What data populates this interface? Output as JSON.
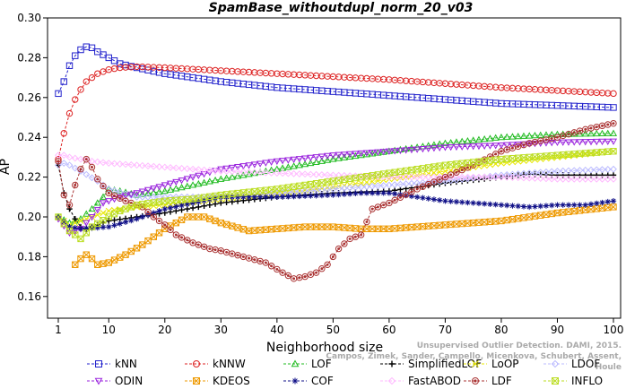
{
  "chart_data": {
    "type": "line",
    "title": "SpamBase_withoutdupl_norm_20_v03",
    "xlabel": "Neighborhood size",
    "ylabel": "AP",
    "xlim": [
      1,
      100
    ],
    "ylim": [
      0.15,
      0.3
    ],
    "xticks": [
      1,
      10,
      20,
      30,
      40,
      50,
      60,
      70,
      80,
      90,
      100
    ],
    "yticks": [
      0.16,
      0.18,
      0.2,
      0.22,
      0.24,
      0.26,
      0.28,
      0.3
    ],
    "grid": false,
    "legend_position": "bottom",
    "series": [
      {
        "name": "kNN",
        "color": "#2222cc",
        "marker": "square",
        "points": [
          [
            1,
            0.262
          ],
          [
            2,
            0.268
          ],
          [
            3,
            0.276
          ],
          [
            4,
            0.281
          ],
          [
            5,
            0.284
          ],
          [
            6,
            0.2855
          ],
          [
            7,
            0.285
          ],
          [
            8,
            0.283
          ],
          [
            10,
            0.28
          ],
          [
            12,
            0.277
          ],
          [
            15,
            0.275
          ],
          [
            20,
            0.272
          ],
          [
            25,
            0.27
          ],
          [
            30,
            0.268
          ],
          [
            40,
            0.265
          ],
          [
            50,
            0.263
          ],
          [
            60,
            0.261
          ],
          [
            70,
            0.259
          ],
          [
            80,
            0.257
          ],
          [
            90,
            0.256
          ],
          [
            100,
            0.255
          ]
        ]
      },
      {
        "name": "kNNW",
        "color": "#dd2222",
        "marker": "circle",
        "points": [
          [
            1,
            0.229
          ],
          [
            2,
            0.242
          ],
          [
            3,
            0.252
          ],
          [
            4,
            0.259
          ],
          [
            5,
            0.264
          ],
          [
            6,
            0.268
          ],
          [
            8,
            0.272
          ],
          [
            10,
            0.274
          ],
          [
            12,
            0.275
          ],
          [
            15,
            0.2755
          ],
          [
            20,
            0.275
          ],
          [
            30,
            0.2735
          ],
          [
            40,
            0.272
          ],
          [
            50,
            0.2705
          ],
          [
            60,
            0.269
          ],
          [
            70,
            0.267
          ],
          [
            80,
            0.265
          ],
          [
            90,
            0.2635
          ],
          [
            100,
            0.262
          ]
        ]
      },
      {
        "name": "LOF",
        "color": "#22bb22",
        "marker": "triangle-up",
        "points": [
          [
            1,
            0.2
          ],
          [
            3,
            0.197
          ],
          [
            5,
            0.199
          ],
          [
            7,
            0.204
          ],
          [
            9,
            0.21
          ],
          [
            10,
            0.214
          ],
          [
            12,
            0.213
          ],
          [
            15,
            0.211
          ],
          [
            20,
            0.213
          ],
          [
            25,
            0.216
          ],
          [
            30,
            0.219
          ],
          [
            40,
            0.224
          ],
          [
            50,
            0.229
          ],
          [
            60,
            0.233
          ],
          [
            70,
            0.237
          ],
          [
            80,
            0.24
          ],
          [
            90,
            0.2415
          ],
          [
            100,
            0.242
          ]
        ]
      },
      {
        "name": "SimplifiedLOF",
        "color": "#000000",
        "marker": "plus",
        "points": [
          [
            1,
            0.226
          ],
          [
            2,
            0.212
          ],
          [
            3,
            0.204
          ],
          [
            4,
            0.199
          ],
          [
            5,
            0.195
          ],
          [
            6,
            0.194
          ],
          [
            8,
            0.196
          ],
          [
            10,
            0.198
          ],
          [
            15,
            0.2
          ],
          [
            20,
            0.202
          ],
          [
            30,
            0.207
          ],
          [
            40,
            0.21
          ],
          [
            50,
            0.212
          ],
          [
            60,
            0.213
          ],
          [
            70,
            0.217
          ],
          [
            80,
            0.22
          ],
          [
            85,
            0.2215
          ],
          [
            90,
            0.221
          ],
          [
            100,
            0.221
          ]
        ]
      },
      {
        "name": "LoOP",
        "color": "#e8e800",
        "marker": "x",
        "points": [
          [
            1,
            0.2
          ],
          [
            3,
            0.196
          ],
          [
            5,
            0.198
          ],
          [
            8,
            0.201
          ],
          [
            10,
            0.203
          ],
          [
            15,
            0.205
          ],
          [
            20,
            0.206
          ],
          [
            30,
            0.209
          ],
          [
            40,
            0.212
          ],
          [
            50,
            0.215
          ],
          [
            60,
            0.219
          ],
          [
            70,
            0.223
          ],
          [
            80,
            0.227
          ],
          [
            90,
            0.23
          ],
          [
            100,
            0.233
          ]
        ]
      },
      {
        "name": "LDOF",
        "color": "#bbbbff",
        "marker": "diamond",
        "points": [
          [
            1,
            0.226
          ],
          [
            2,
            0.227
          ],
          [
            3,
            0.226
          ],
          [
            5,
            0.223
          ],
          [
            8,
            0.218
          ],
          [
            10,
            0.214
          ],
          [
            15,
            0.21
          ],
          [
            20,
            0.21
          ],
          [
            30,
            0.21
          ],
          [
            40,
            0.212
          ],
          [
            50,
            0.214
          ],
          [
            60,
            0.216
          ],
          [
            70,
            0.218
          ],
          [
            80,
            0.221
          ],
          [
            90,
            0.223
          ],
          [
            100,
            0.224
          ]
        ]
      },
      {
        "name": "ODIN",
        "color": "#9922dd",
        "marker": "triangle-down",
        "points": [
          [
            1,
            0.199
          ],
          [
            3,
            0.192
          ],
          [
            5,
            0.194
          ],
          [
            7,
            0.2
          ],
          [
            9,
            0.207
          ],
          [
            12,
            0.21
          ],
          [
            15,
            0.212
          ],
          [
            20,
            0.216
          ],
          [
            25,
            0.22
          ],
          [
            30,
            0.224
          ],
          [
            40,
            0.228
          ],
          [
            50,
            0.231
          ],
          [
            60,
            0.233
          ],
          [
            70,
            0.235
          ],
          [
            80,
            0.236
          ],
          [
            90,
            0.2375
          ],
          [
            100,
            0.238
          ]
        ]
      },
      {
        "name": "KDEOS",
        "color": "#ee9900",
        "marker": "square-x",
        "points": [
          [
            4,
            0.176
          ],
          [
            5,
            0.179
          ],
          [
            6,
            0.181
          ],
          [
            7,
            0.179
          ],
          [
            8,
            0.176
          ],
          [
            10,
            0.177
          ],
          [
            13,
            0.181
          ],
          [
            16,
            0.186
          ],
          [
            20,
            0.194
          ],
          [
            24,
            0.2
          ],
          [
            27,
            0.2
          ],
          [
            30,
            0.197
          ],
          [
            35,
            0.193
          ],
          [
            40,
            0.194
          ],
          [
            45,
            0.195
          ],
          [
            50,
            0.195
          ],
          [
            55,
            0.194
          ],
          [
            60,
            0.194
          ],
          [
            70,
            0.196
          ],
          [
            80,
            0.198
          ],
          [
            90,
            0.202
          ],
          [
            100,
            0.205
          ]
        ]
      },
      {
        "name": "COF",
        "color": "#111188",
        "marker": "asterisk",
        "points": [
          [
            1,
            0.2
          ],
          [
            3,
            0.195
          ],
          [
            5,
            0.194
          ],
          [
            10,
            0.195
          ],
          [
            15,
            0.199
          ],
          [
            20,
            0.204
          ],
          [
            30,
            0.21
          ],
          [
            40,
            0.21
          ],
          [
            50,
            0.211
          ],
          [
            55,
            0.212
          ],
          [
            60,
            0.212
          ],
          [
            65,
            0.21
          ],
          [
            70,
            0.208
          ],
          [
            75,
            0.207
          ],
          [
            80,
            0.206
          ],
          [
            85,
            0.205
          ],
          [
            90,
            0.206
          ],
          [
            95,
            0.206
          ],
          [
            100,
            0.208
          ]
        ]
      },
      {
        "name": "FastABOD",
        "color": "#ffbbff",
        "marker": "diamond",
        "points": [
          [
            1,
            0.231
          ],
          [
            2,
            0.231
          ],
          [
            3,
            0.23
          ],
          [
            5,
            0.229
          ],
          [
            7,
            0.228
          ],
          [
            10,
            0.227
          ],
          [
            15,
            0.226
          ],
          [
            20,
            0.225
          ],
          [
            30,
            0.223
          ],
          [
            40,
            0.222
          ],
          [
            50,
            0.221
          ],
          [
            60,
            0.22
          ],
          [
            70,
            0.22
          ],
          [
            80,
            0.22
          ],
          [
            90,
            0.219
          ],
          [
            100,
            0.219
          ]
        ]
      },
      {
        "name": "LDF",
        "color": "#aa3333",
        "marker": "circle-dot",
        "points": [
          [
            1,
            0.228
          ],
          [
            2,
            0.211
          ],
          [
            3,
            0.206
          ],
          [
            4,
            0.216
          ],
          [
            5,
            0.224
          ],
          [
            6,
            0.229
          ],
          [
            7,
            0.225
          ],
          [
            8,
            0.219
          ],
          [
            10,
            0.212
          ],
          [
            13,
            0.208
          ],
          [
            16,
            0.205
          ],
          [
            18,
            0.2
          ],
          [
            20,
            0.196
          ],
          [
            22,
            0.191
          ],
          [
            25,
            0.187
          ],
          [
            28,
            0.184
          ],
          [
            30,
            0.183
          ],
          [
            34,
            0.18
          ],
          [
            38,
            0.177
          ],
          [
            41,
            0.172
          ],
          [
            43,
            0.169
          ],
          [
            45,
            0.17
          ],
          [
            47,
            0.172
          ],
          [
            49,
            0.176
          ],
          [
            51,
            0.184
          ],
          [
            53,
            0.189
          ],
          [
            55,
            0.191
          ],
          [
            57,
            0.204
          ],
          [
            60,
            0.207
          ],
          [
            65,
            0.214
          ],
          [
            70,
            0.22
          ],
          [
            75,
            0.226
          ],
          [
            80,
            0.233
          ],
          [
            85,
            0.237
          ],
          [
            90,
            0.24
          ],
          [
            95,
            0.244
          ],
          [
            100,
            0.247
          ]
        ]
      },
      {
        "name": "INFLO",
        "color": "#bbdd22",
        "marker": "square-x",
        "points": [
          [
            1,
            0.2
          ],
          [
            3,
            0.193
          ],
          [
            5,
            0.189
          ],
          [
            7,
            0.195
          ],
          [
            10,
            0.2
          ],
          [
            12,
            0.203
          ],
          [
            15,
            0.206
          ],
          [
            20,
            0.208
          ],
          [
            25,
            0.209
          ],
          [
            30,
            0.211
          ],
          [
            40,
            0.214
          ],
          [
            50,
            0.218
          ],
          [
            60,
            0.222
          ],
          [
            70,
            0.226
          ],
          [
            80,
            0.229
          ],
          [
            90,
            0.231
          ],
          [
            100,
            0.233
          ]
        ]
      }
    ],
    "watermark": [
      "Campos, Zimek, Sander, Campello, Micenkova, Schubert, Assent, Houle",
      "Unsupervised Outlier Detection. DAMI, 2015."
    ]
  }
}
